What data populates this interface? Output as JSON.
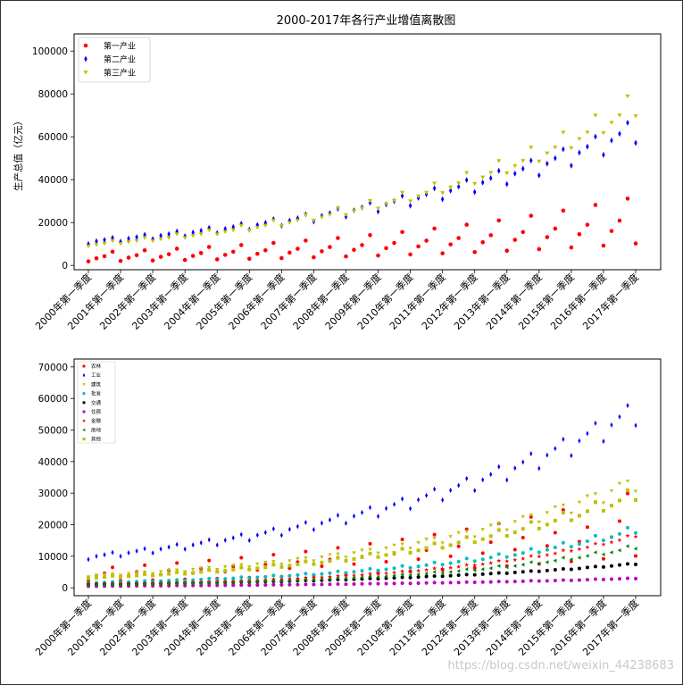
{
  "x_tick_labels": [
    "2000年第一季度",
    "2001年第一季度",
    "2002年第一季度",
    "2003年第一季度",
    "2004年第一季度",
    "2005年第一季度",
    "2006年第一季度",
    "2007年第一季度",
    "2008年第一季度",
    "2009年第一季度",
    "2010年第一季度",
    "2011年第一季度",
    "2012年第一季度",
    "2013年第一季度",
    "2014年第一季度",
    "2015年第一季度",
    "2016年第一季度",
    "2017年第一季度"
  ],
  "watermark": "https://blog.csdn.net/weixin_44238683",
  "chart_data": [
    {
      "type": "scatter",
      "title": "2000-2017年各行产业增值离散图",
      "xlabel": "",
      "ylabel": "生产总值（亿元）",
      "ylim": [
        -2000,
        108000
      ],
      "yticks": [
        0,
        20000,
        40000,
        60000,
        80000,
        100000
      ],
      "legend_position": "top-left",
      "n_quarters": 69,
      "series": [
        {
          "name": "第一产业",
          "color": "#ff0000",
          "marker": "o",
          "q": [
            1900,
            3300,
            4300,
            6400
          ],
          "growth": 0.104
        },
        {
          "name": "第二产业",
          "color": "#0000ff",
          "marker": "diamond",
          "q": [
            10000,
            11300,
            11900,
            12900
          ],
          "growth": 0.108
        },
        {
          "name": "第三产业",
          "color": "#bfbf00",
          "marker": "triangle-down",
          "q": [
            9000,
            9700,
            10200,
            11500
          ],
          "growth": 0.128
        }
      ]
    },
    {
      "type": "scatter",
      "title": "",
      "xlabel": "",
      "ylabel": "",
      "ylim": [
        -2500,
        72500
      ],
      "yticks": [
        0,
        10000,
        20000,
        30000,
        40000,
        50000,
        60000,
        70000
      ],
      "legend_position": "top-left",
      "n_quarters": 69,
      "series": [
        {
          "name": "农林",
          "color": "#ff0000",
          "marker": "o",
          "q": [
            2000,
            3500,
            4600,
            6500
          ],
          "growth": 0.1
        },
        {
          "name": "工业",
          "color": "#0000ff",
          "marker": "diamond",
          "q": [
            9000,
            10000,
            10500,
            11200
          ],
          "growth": 0.108
        },
        {
          "name": "建筑",
          "color": "#bfbf00",
          "marker": "triangle-down",
          "q": [
            3500,
            4000,
            4300,
            4400
          ],
          "growth": 0.136
        },
        {
          "name": "批发",
          "color": "#00bfbf",
          "marker": "o",
          "q": [
            1500,
            1600,
            1700,
            1900
          ],
          "growth": 0.155
        },
        {
          "name": "交通",
          "color": "#000000",
          "marker": "o",
          "q": [
            1000,
            1050,
            1100,
            1150
          ],
          "growth": 0.125
        },
        {
          "name": "住宿",
          "color": "#bf00bf",
          "marker": "o",
          "q": [
            500,
            520,
            540,
            580
          ],
          "growth": 0.109
        },
        {
          "name": "金融",
          "color": "#ff0000",
          "marker": "star",
          "q": [
            1000,
            1050,
            1100,
            1200
          ],
          "growth": 0.178
        },
        {
          "name": "房地",
          "color": "#008000",
          "marker": "triangle-left",
          "q": [
            800,
            850,
            900,
            1000
          ],
          "growth": 0.175
        },
        {
          "name": "其他",
          "color": "#bfbf00",
          "marker": "square",
          "q": [
            3000,
            3200,
            3400,
            3800
          ],
          "growth": 0.14
        }
      ]
    }
  ]
}
